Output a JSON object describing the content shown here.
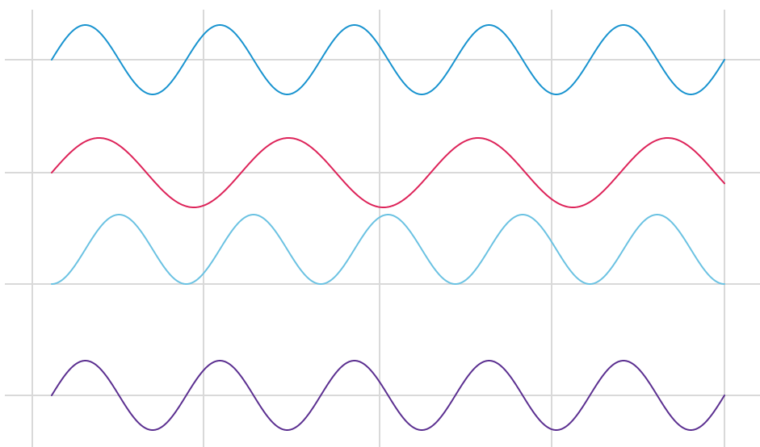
{
  "chart_data": {
    "type": "line",
    "title": "",
    "xlabel": "",
    "ylabel": "",
    "grid": true,
    "legend": "none",
    "series": [
      {
        "color": "#1893cf",
        "cycles": 5.0,
        "phase": "sine",
        "amplitude": 1
      },
      {
        "color": "#dd2359",
        "cycles": 3.55,
        "phase": "sine",
        "amplitude": 1
      },
      {
        "color": "#6bc2e2",
        "cycles": 5.0,
        "phase": "trough-start",
        "amplitude": 1
      },
      {
        "color": "#5b2f90",
        "cycles": 5.0,
        "phase": "sine",
        "amplitude": 1
      }
    ]
  }
}
